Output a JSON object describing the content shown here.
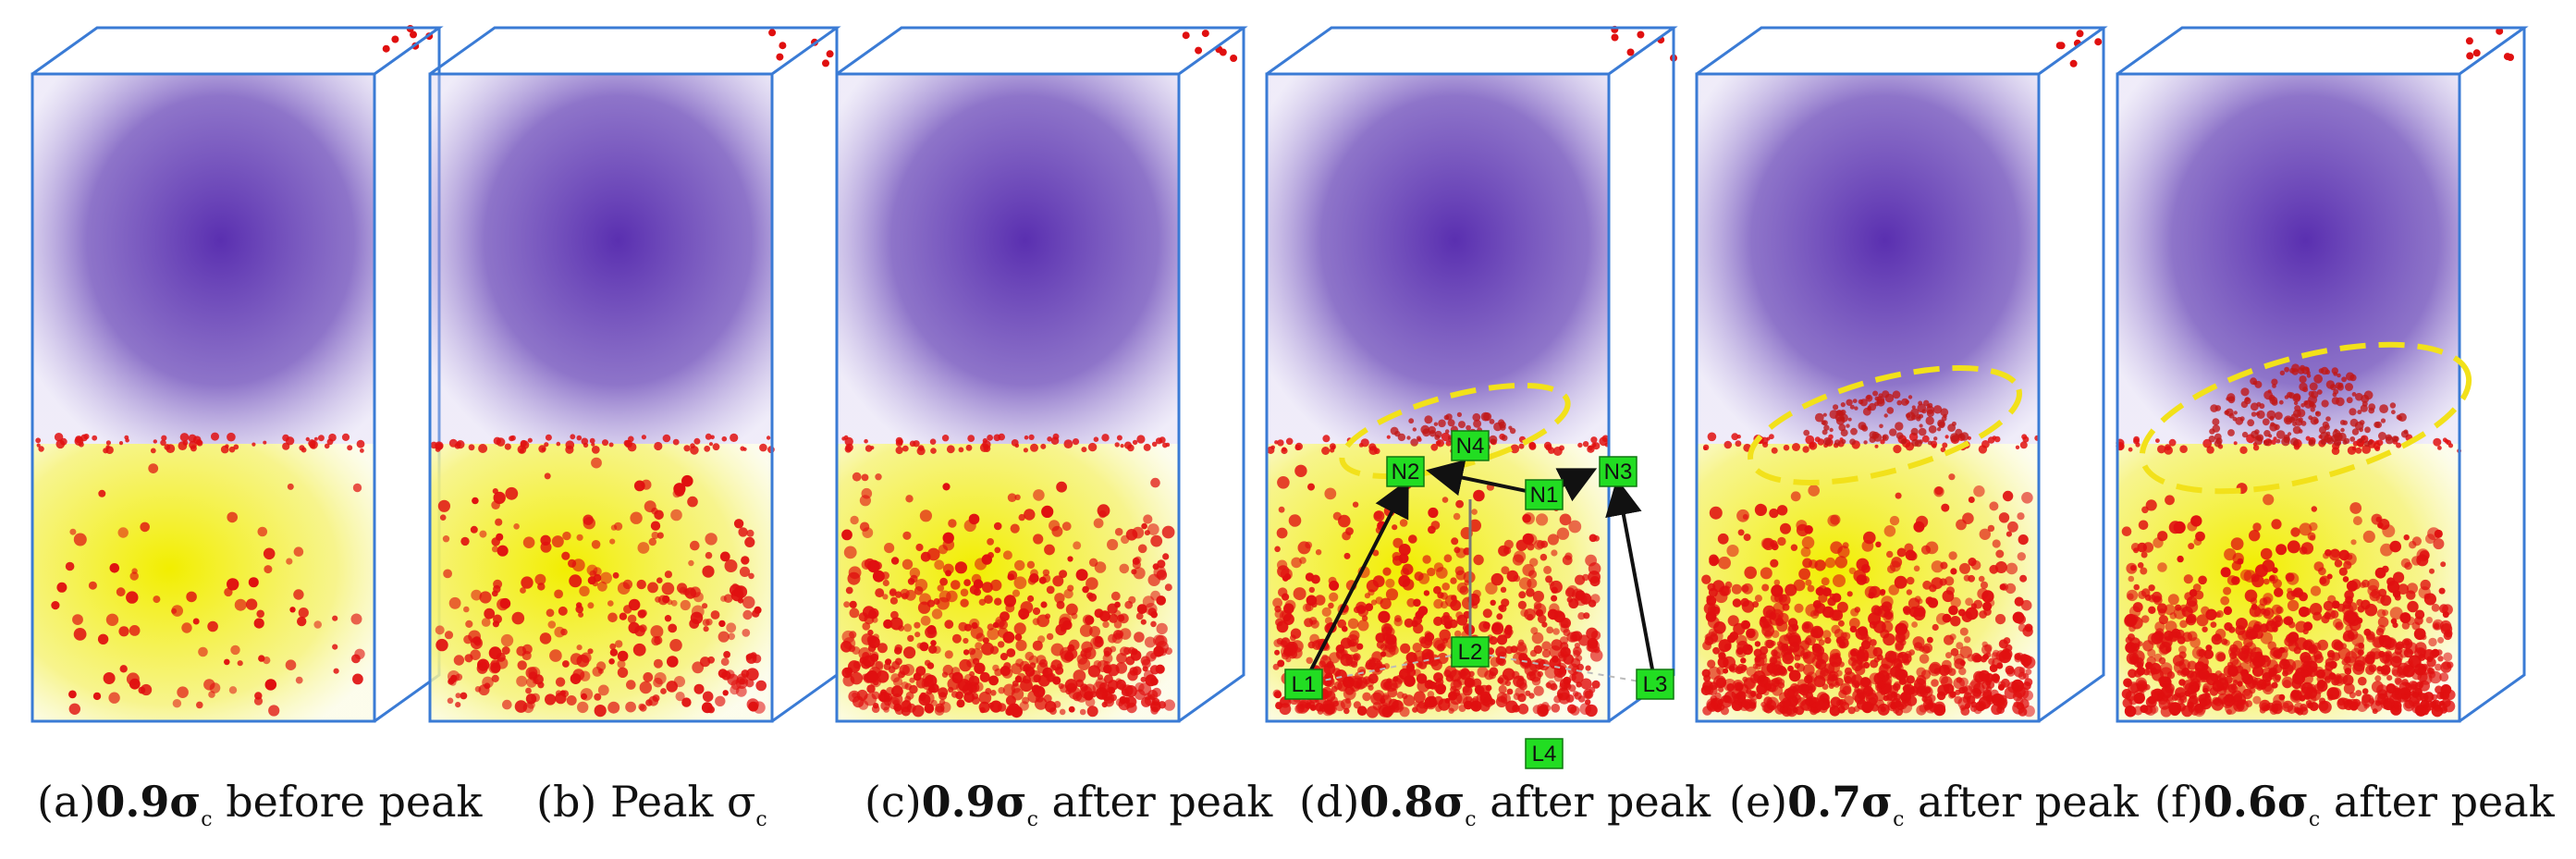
{
  "panels": [
    {
      "id": "a",
      "prefix": "(a)",
      "bold": "0.9σ",
      "sub": "c",
      "suffix": " before peak",
      "damage": 0.05,
      "bulge": 0.0
    },
    {
      "id": "b",
      "prefix": "(b) Peak σ",
      "bold": "",
      "sub": "c",
      "suffix": "",
      "damage": 0.3,
      "bulge": 0.0
    },
    {
      "id": "c",
      "prefix": "(c)",
      "bold": "0.9σ",
      "sub": "c",
      "suffix": "  after peak",
      "damage": 0.62,
      "bulge": 0.0
    },
    {
      "id": "d",
      "prefix": "(d)",
      "bold": "0.8σ",
      "sub": "c",
      "suffix": "  after peak",
      "damage": 0.75,
      "bulge": 0.2
    },
    {
      "id": "e",
      "prefix": "(e)",
      "bold": "0.7σ",
      "sub": "c",
      "suffix": "  after peak",
      "damage": 0.9,
      "bulge": 0.5
    },
    {
      "id": "f",
      "prefix": "(f)",
      "bold": "0.6σ",
      "sub": "c",
      "suffix": "  after peak",
      "damage": 0.95,
      "bulge": 0.9
    }
  ],
  "node_labels": [
    "N1",
    "N2",
    "N3",
    "N4",
    "L1",
    "L2",
    "L3",
    "L4"
  ],
  "colors": {
    "box_edge": "#3a7bd5",
    "upper_region": "#5a3aa8",
    "lower_region": "#f5f000",
    "particles": "#e01010",
    "node_fill": "#22dd22",
    "ellipse": "#f2e11a",
    "arrow": "#111111"
  }
}
